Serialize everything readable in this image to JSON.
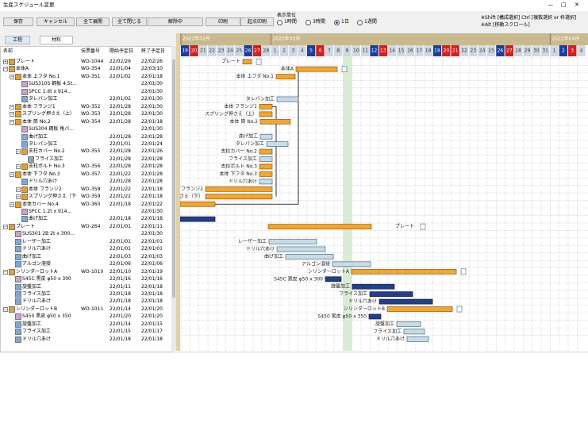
{
  "window": {
    "title": "生産スケジュール変更"
  },
  "toolbar": {
    "buttons": [
      "保存",
      "キャンセル",
      "全て展開",
      "全て閉じる",
      "解除中",
      "印刷",
      "起点印刷"
    ],
    "unit_label": "表示単位",
    "units": [
      "1時間",
      "3時間",
      "1日",
      "1週間"
    ],
    "selected_unit": 2,
    "hints": [
      "※Shift [構成選択] Ctrl [複数選択 or 枠選択]",
      "※Alt [移動スクロール]"
    ]
  },
  "tabs": [
    "工程",
    "材料"
  ],
  "table": {
    "columns": [
      "名前",
      "伝票番号",
      "開始予定日",
      "終了予定日"
    ],
    "rows": [
      {
        "name": "プレート",
        "slip": "WO-1044",
        "start": "22/02/26",
        "end": "22/02/26"
      },
      {
        "name": "本体A",
        "slip": "WO-354",
        "start": "22/01/04",
        "end": "22/03/10"
      },
      {
        "name": "本体 上フタ No.1",
        "slip": "WO-351",
        "start": "22/01/02",
        "end": "22/01/18"
      },
      {
        "name": "SUS310S 鋼板 4.5t...",
        "end": "22/01/30"
      },
      {
        "name": "SPCC 1.6t x 914...",
        "end": "22/01/30"
      },
      {
        "name": "タレパン加工",
        "start": "22/01/02",
        "end": "22/01/30"
      },
      {
        "name": "本体 フランジ1",
        "slip": "WO-352",
        "start": "22/01/28",
        "end": "22/01/30"
      },
      {
        "name": "スプリング押さえ（上）",
        "slip": "WO-353",
        "start": "22/01/28",
        "end": "22/01/30"
      },
      {
        "name": "本体 筒 No.2",
        "slip": "WO-354",
        "start": "22/01/28",
        "end": "22/01/18"
      },
      {
        "name": "SUS304 鋼板 角パ...",
        "end": "22/01/30"
      },
      {
        "name": "曲げ加工",
        "start": "22/01/28",
        "end": "22/01/28"
      },
      {
        "name": "タレパン加工",
        "start": "22/01/01",
        "end": "22/01/24"
      },
      {
        "name": "支柱カバー No.2",
        "slip": "WO-355",
        "start": "22/01/28",
        "end": "22/01/26"
      },
      {
        "name": "フライス加工",
        "start": "22/01/28",
        "end": "22/01/28"
      },
      {
        "name": "支柱ボルト No.3",
        "slip": "WO-356",
        "start": "22/01/28",
        "end": "22/01/28"
      },
      {
        "name": "本体 下フタ No.3",
        "slip": "WO-357",
        "start": "22/01/22",
        "end": "22/01/28"
      },
      {
        "name": "ドリル穴あけ",
        "start": "22/01/28",
        "end": "22/01/28"
      },
      {
        "name": "本体 フランジ2",
        "slip": "WO-358",
        "start": "22/01/22",
        "end": "22/01/18"
      },
      {
        "name": "スプリング押さえ（下）",
        "slip": "WO-359",
        "start": "22/01/22",
        "end": "22/01/18"
      },
      {
        "name": "本体カバー No.4",
        "slip": "WO-360",
        "start": "22/01/18",
        "end": "22/01/22"
      },
      {
        "name": "SPCC 1.2t x 914...",
        "end": "22/01/30"
      },
      {
        "name": "曲げ加工",
        "start": "22/01/18",
        "end": "22/01/18"
      },
      {
        "name": "プレート",
        "slip": "WO-264",
        "start": "22/01/01",
        "end": "22/01/11"
      },
      {
        "name": "SUS301 2B 2t x 300...",
        "end": "22/01/30"
      },
      {
        "name": "レーザー加工",
        "start": "22/01/01",
        "end": "22/01/01"
      },
      {
        "name": "ドリル穴あけ",
        "start": "22/01/01",
        "end": "22/01/01"
      },
      {
        "name": "曲げ加工",
        "start": "22/01/03",
        "end": "22/01/03"
      },
      {
        "name": "アルゴン溶接",
        "start": "22/01/06",
        "end": "22/01/06"
      },
      {
        "name": "シリンダーロットA",
        "slip": "WO-1010",
        "start": "22/01/10",
        "end": "22/01/19"
      },
      {
        "name": "S45C 黒皮 φ50 x 300",
        "start": "22/01/16",
        "end": "22/01/16"
      },
      {
        "name": "旋盤加工",
        "start": "22/01/11",
        "end": "22/01/18"
      },
      {
        "name": "フライス加工",
        "start": "22/01/18",
        "end": "22/01/18"
      },
      {
        "name": "ドリル穴あけ",
        "start": "22/01/18",
        "end": "22/01/18"
      },
      {
        "name": "シリンダーロットB",
        "slip": "WO-1011",
        "start": "22/01/14",
        "end": "22/01/20"
      },
      {
        "name": "S450 黒皮 φ50 x 350",
        "start": "22/01/20",
        "end": "22/01/20"
      },
      {
        "name": "旋盤加工",
        "start": "22/01/14",
        "end": "22/01/15"
      },
      {
        "name": "フライス加工",
        "start": "22/01/15",
        "end": "22/01/17"
      },
      {
        "name": "ドリル穴あけ",
        "start": "22/01/18",
        "end": "22/01/18"
      }
    ]
  },
  "gantt": {
    "months": [
      "2022年02月",
      "2022年03月",
      "2022年04月"
    ],
    "days": [
      19,
      20,
      21,
      22,
      23,
      24,
      25,
      26,
      27,
      28,
      1,
      2,
      3,
      4,
      5,
      6,
      7,
      8,
      9,
      10,
      11,
      12,
      13,
      14,
      15,
      16,
      17,
      18,
      19,
      20,
      21,
      22,
      23,
      24,
      25,
      26,
      27,
      28,
      29,
      30,
      31,
      1,
      2,
      3,
      4
    ]
  }
}
